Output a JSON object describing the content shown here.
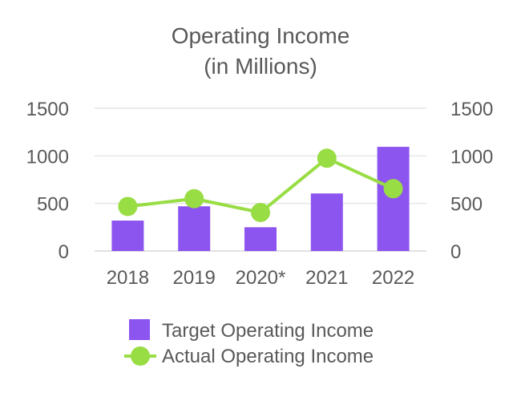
{
  "chart_data": {
    "type": "bar",
    "title_lines": [
      "Operating Income",
      "(in Millions)"
    ],
    "categories": [
      "2018",
      "2019",
      "2020*",
      "2021",
      "2022"
    ],
    "series": [
      {
        "name": "Target Operating Income",
        "type": "bar",
        "color": "#8d55ef",
        "values": [
          320,
          470,
          250,
          605,
          1095
        ]
      },
      {
        "name": "Actual Operating Income",
        "type": "line",
        "color": "#99dd44",
        "values": [
          468,
          550,
          405,
          975,
          655
        ]
      }
    ],
    "ylim": [
      0,
      1500
    ],
    "yticks": [
      "0",
      "500",
      "1000",
      "1500"
    ],
    "y_right_ticks": [
      "0",
      "500",
      "1000",
      "1500"
    ],
    "grid": true,
    "legend": "bottom"
  }
}
